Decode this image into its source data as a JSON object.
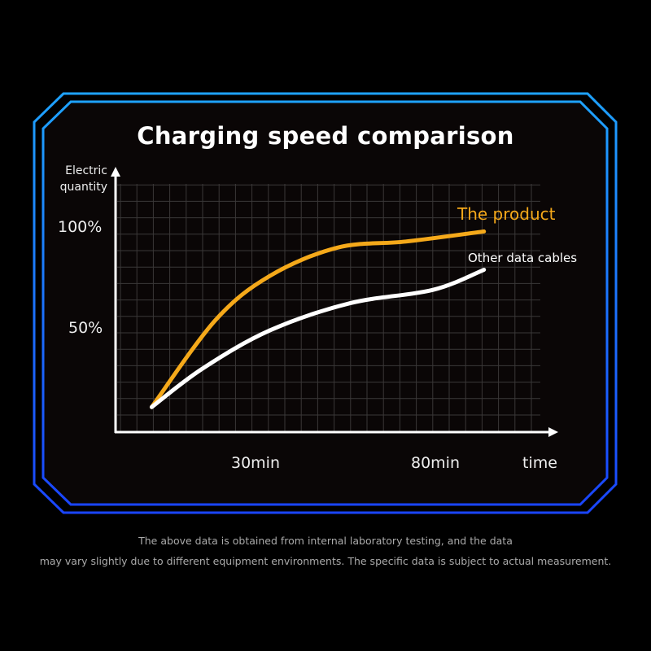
{
  "chart_data": {
    "type": "line",
    "title": "Charging speed comparison",
    "ylabel": "Electric quantity",
    "xlabel": "time",
    "x_ticks": [
      {
        "value": 30,
        "label": "30min"
      },
      {
        "value": 80,
        "label": "80min"
      }
    ],
    "y_ticks": [
      {
        "value": 50,
        "label": "50%"
      },
      {
        "value": 100,
        "label": "100%"
      }
    ],
    "xlim": [
      -10,
      112
    ],
    "ylim": [
      -1,
      128
    ],
    "grid": true,
    "legend": "inline labels at line ends (right)",
    "series": [
      {
        "name": "The product",
        "color": "#f5a91a",
        "points": [
          [
            0,
            11
          ],
          [
            17.6,
            54
          ],
          [
            32.7,
            76
          ],
          [
            51.4,
            90
          ],
          [
            70.3,
            93
          ],
          [
            91.9,
            98
          ]
        ]
      },
      {
        "name": "Other data cables",
        "color": "#ffffff",
        "points": [
          [
            0,
            11
          ],
          [
            14,
            30
          ],
          [
            32.7,
            49
          ],
          [
            55,
            62.5
          ],
          [
            77.7,
            69
          ],
          [
            91.9,
            79
          ]
        ]
      }
    ]
  },
  "frame_colors": {
    "top": "#1ea2ff",
    "bottom": "#1a45ff"
  },
  "footnote": {
    "line1": "The above data is obtained from internal laboratory testing, and the data",
    "line2": "may vary slightly due to different equipment environments. The specific data is subject to actual measurement."
  }
}
